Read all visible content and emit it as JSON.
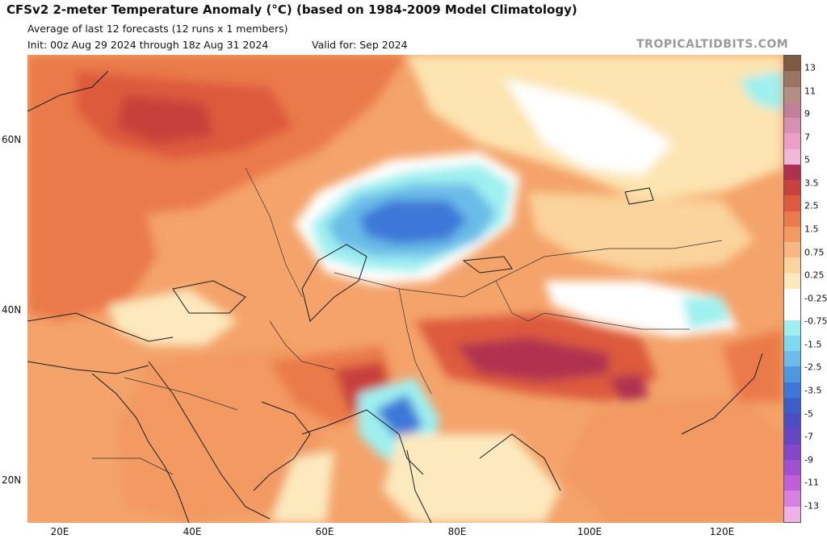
{
  "header": {
    "title": "CFSv2 2-meter Temperature Anomaly (°C) (based on 1984-2009 Model Climatology)",
    "subtitle": "Average of last 12 forecasts (12 runs x 1 members)",
    "init": "Init: 00z Aug 29 2024 through 18z Aug 31 2024",
    "valid": "Valid for: Sep 2024",
    "credit": "TROPICALTIDBITS.COM"
  },
  "axes": {
    "lat_labels": [
      "60N",
      "40N",
      "20N"
    ],
    "lon_labels": [
      "20E",
      "40E",
      "60E",
      "80E",
      "100E",
      "120E"
    ]
  },
  "colorbar": {
    "labels": [
      "13",
      "11",
      "9",
      "7",
      "5",
      "3.5",
      "2.5",
      "1.5",
      "0.75",
      "0.25",
      "-0.25",
      "-0.75",
      "-1.5",
      "-2.5",
      "-3.5",
      "-5",
      "-7",
      "-9",
      "-11",
      "-13"
    ],
    "colors": [
      "#7d5a44",
      "#9a7560",
      "#b48e80",
      "#c27f98",
      "#d88fb4",
      "#ec9fc9",
      "#f3b8d8",
      "#b03050",
      "#c8413b",
      "#dd5a3c",
      "#ea7a4a",
      "#f29a62",
      "#f7b77e",
      "#fbd39c",
      "#fde9be",
      "#ffffff",
      "#ffffff",
      "#9ff0f0",
      "#7fd8f2",
      "#6bbce8",
      "#4d98e0",
      "#3c78d8",
      "#3a5fc8",
      "#4d4fc0",
      "#6646c4",
      "#8448c8",
      "#a050d0",
      "#c060d8",
      "#d880e0",
      "#f0b0e8"
    ]
  },
  "map": {
    "region": "Europe / Middle East / Asia",
    "lon_range": [
      15,
      130
    ],
    "lat_range": [
      15,
      70
    ],
    "background_anomaly_color": "#f29a62"
  }
}
